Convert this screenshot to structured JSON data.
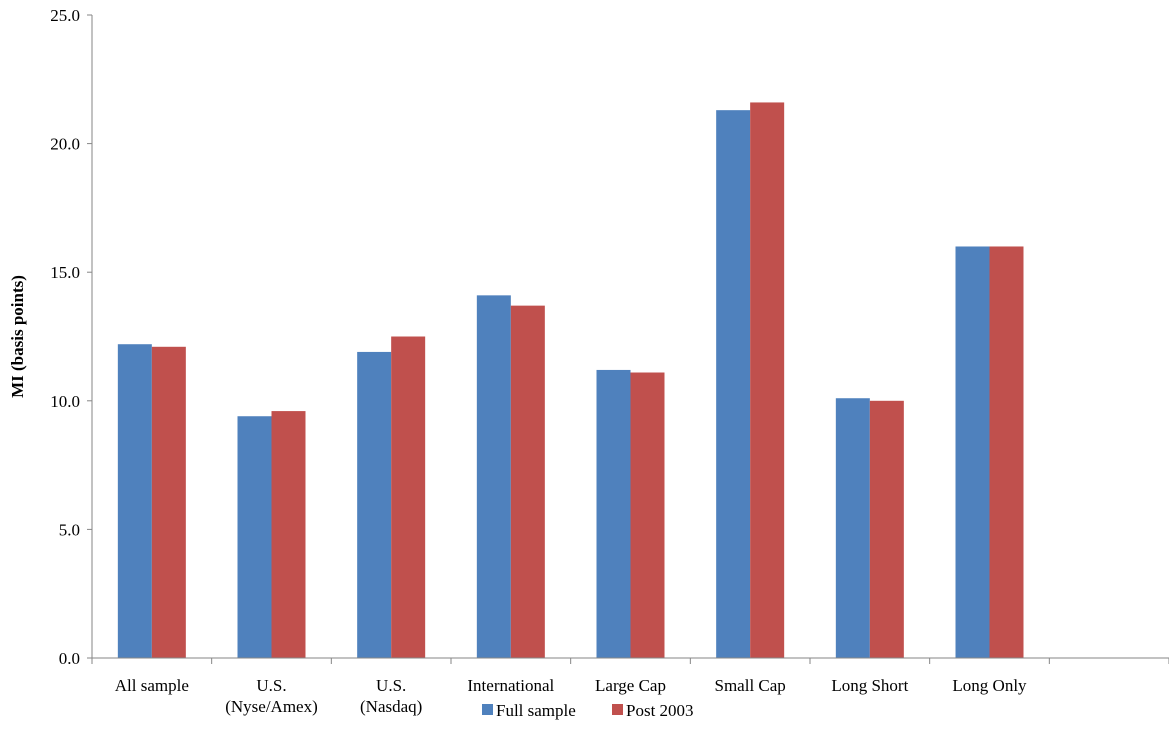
{
  "chart_data": {
    "type": "bar",
    "categories": [
      [
        "All sample"
      ],
      [
        "U.S.",
        "(Nyse/Amex)"
      ],
      [
        "U.S.",
        "(Nasdaq)"
      ],
      [
        "International"
      ],
      [
        "Large Cap"
      ],
      [
        "Small Cap"
      ],
      [
        "Long Short"
      ],
      [
        "Long Only"
      ],
      [
        ""
      ]
    ],
    "series": [
      {
        "name": "Full sample",
        "color": "#4F81BD",
        "values": [
          12.2,
          9.4,
          11.9,
          14.1,
          11.2,
          21.3,
          10.1,
          16.0,
          null
        ]
      },
      {
        "name": "Post 2003",
        "color": "#C0504D",
        "values": [
          12.1,
          9.6,
          12.5,
          13.7,
          11.1,
          21.6,
          10.0,
          16.0,
          null
        ]
      }
    ],
    "title": "",
    "xlabel": "",
    "ylabel": "MI (basis points)",
    "ylim": [
      0,
      25
    ],
    "yticks": [
      "0.0",
      "5.0",
      "10.0",
      "15.0",
      "20.0",
      "25.0"
    ],
    "grid": false,
    "legend_position": "bottom"
  }
}
